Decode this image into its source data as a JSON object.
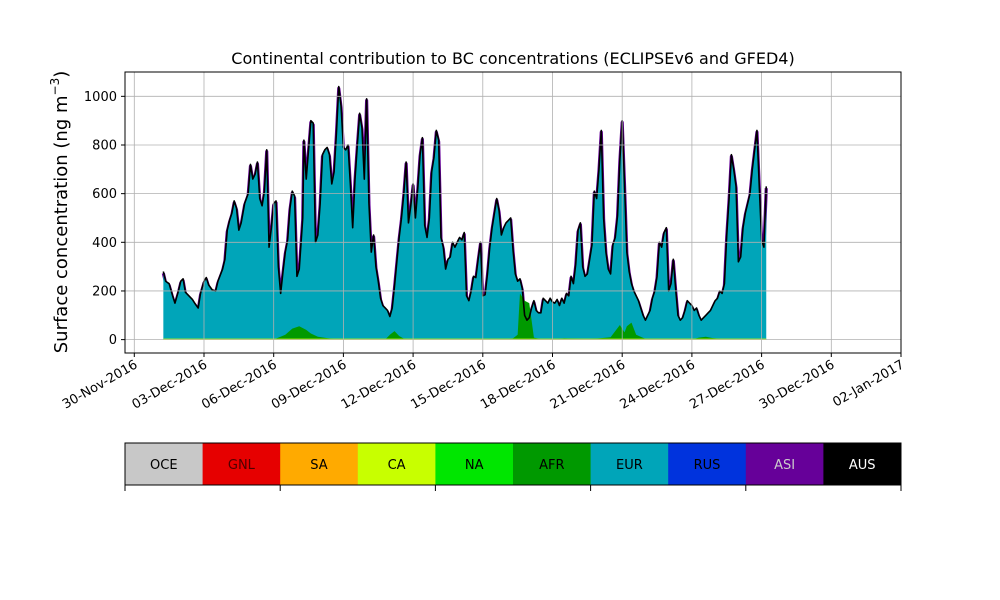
{
  "chart_data": {
    "type": "area",
    "title": "Continental contribution to BC concentrations (ECLIPSEv6 and GFED4)",
    "ylabel_main": "Surface concentration (ng m",
    "ylabel_unit_exp": "−3",
    "ylabel_close": ")",
    "ylim": [
      -55,
      1100
    ],
    "xlim_days": [
      -1.4,
      32.0
    ],
    "grid": true,
    "x_ticks": [
      {
        "label": "30-Nov-2016",
        "day": -1
      },
      {
        "label": "03-Dec-2016",
        "day": 2
      },
      {
        "label": "06-Dec-2016",
        "day": 5
      },
      {
        "label": "09-Dec-2016",
        "day": 8
      },
      {
        "label": "12-Dec-2016",
        "day": 11
      },
      {
        "label": "15-Dec-2016",
        "day": 14
      },
      {
        "label": "18-Dec-2016",
        "day": 17
      },
      {
        "label": "21-Dec-2016",
        "day": 20
      },
      {
        "label": "24-Dec-2016",
        "day": 23
      },
      {
        "label": "27-Dec-2016",
        "day": 26
      },
      {
        "label": "30-Dec-2016",
        "day": 29
      },
      {
        "label": "02-Jan-2017",
        "day": 32
      }
    ],
    "y_ticks": [
      0,
      200,
      400,
      600,
      800,
      1000
    ],
    "total": [
      [
        0.25,
        280
      ],
      [
        0.35,
        240
      ],
      [
        0.5,
        230
      ],
      [
        0.65,
        180
      ],
      [
        0.75,
        150
      ],
      [
        0.9,
        200
      ],
      [
        1.0,
        240
      ],
      [
        1.1,
        250
      ],
      [
        1.2,
        195
      ],
      [
        1.35,
        180
      ],
      [
        1.5,
        165
      ],
      [
        1.6,
        150
      ],
      [
        1.75,
        130
      ],
      [
        1.85,
        190
      ],
      [
        2.0,
        240
      ],
      [
        2.1,
        255
      ],
      [
        2.2,
        225
      ],
      [
        2.35,
        205
      ],
      [
        2.5,
        200
      ],
      [
        2.6,
        240
      ],
      [
        2.8,
        290
      ],
      [
        2.9,
        330
      ],
      [
        3.0,
        450
      ],
      [
        3.1,
        490
      ],
      [
        3.2,
        520
      ],
      [
        3.3,
        570
      ],
      [
        3.4,
        540
      ],
      [
        3.5,
        450
      ],
      [
        3.6,
        480
      ],
      [
        3.75,
        560
      ],
      [
        3.9,
        600
      ],
      [
        4.0,
        720
      ],
      [
        4.1,
        660
      ],
      [
        4.2,
        680
      ],
      [
        4.3,
        730
      ],
      [
        4.4,
        580
      ],
      [
        4.5,
        550
      ],
      [
        4.6,
        610
      ],
      [
        4.7,
        780
      ],
      [
        4.8,
        380
      ],
      [
        4.9,
        460
      ],
      [
        5.0,
        560
      ],
      [
        5.1,
        570
      ],
      [
        5.2,
        300
      ],
      [
        5.3,
        190
      ],
      [
        5.4,
        280
      ],
      [
        5.5,
        360
      ],
      [
        5.6,
        410
      ],
      [
        5.7,
        540
      ],
      [
        5.8,
        610
      ],
      [
        5.9,
        590
      ],
      [
        6.0,
        260
      ],
      [
        6.1,
        290
      ],
      [
        6.25,
        500
      ],
      [
        6.3,
        820
      ],
      [
        6.4,
        660
      ],
      [
        6.5,
        780
      ],
      [
        6.6,
        900
      ],
      [
        6.7,
        890
      ],
      [
        6.8,
        400
      ],
      [
        6.9,
        430
      ],
      [
        7.0,
        560
      ],
      [
        7.1,
        760
      ],
      [
        7.2,
        780
      ],
      [
        7.3,
        790
      ],
      [
        7.4,
        760
      ],
      [
        7.5,
        640
      ],
      [
        7.6,
        690
      ],
      [
        7.7,
        850
      ],
      [
        7.8,
        1040
      ],
      [
        7.9,
        960
      ],
      [
        8.0,
        790
      ],
      [
        8.1,
        780
      ],
      [
        8.2,
        800
      ],
      [
        8.3,
        640
      ],
      [
        8.4,
        460
      ],
      [
        8.5,
        660
      ],
      [
        8.6,
        800
      ],
      [
        8.7,
        930
      ],
      [
        8.8,
        870
      ],
      [
        8.9,
        660
      ],
      [
        9.0,
        990
      ],
      [
        9.1,
        560
      ],
      [
        9.2,
        360
      ],
      [
        9.3,
        430
      ],
      [
        9.4,
        300
      ],
      [
        9.5,
        240
      ],
      [
        9.6,
        170
      ],
      [
        9.7,
        140
      ],
      [
        9.8,
        130
      ],
      [
        9.9,
        120
      ],
      [
        10.0,
        95
      ],
      [
        10.1,
        130
      ],
      [
        10.2,
        220
      ],
      [
        10.3,
        320
      ],
      [
        10.4,
        420
      ],
      [
        10.5,
        500
      ],
      [
        10.6,
        600
      ],
      [
        10.7,
        730
      ],
      [
        10.8,
        480
      ],
      [
        10.9,
        550
      ],
      [
        11.0,
        640
      ],
      [
        11.1,
        500
      ],
      [
        11.2,
        620
      ],
      [
        11.3,
        760
      ],
      [
        11.4,
        830
      ],
      [
        11.5,
        470
      ],
      [
        11.6,
        420
      ],
      [
        11.7,
        500
      ],
      [
        11.8,
        690
      ],
      [
        11.9,
        750
      ],
      [
        12.0,
        860
      ],
      [
        12.1,
        820
      ],
      [
        12.2,
        420
      ],
      [
        12.3,
        380
      ],
      [
        12.4,
        290
      ],
      [
        12.5,
        330
      ],
      [
        12.6,
        340
      ],
      [
        12.7,
        400
      ],
      [
        12.8,
        380
      ],
      [
        12.9,
        400
      ],
      [
        13.0,
        420
      ],
      [
        13.1,
        410
      ],
      [
        13.2,
        440
      ],
      [
        13.3,
        180
      ],
      [
        13.4,
        160
      ],
      [
        13.5,
        200
      ],
      [
        13.6,
        260
      ],
      [
        13.7,
        255
      ],
      [
        13.8,
        330
      ],
      [
        13.9,
        400
      ],
      [
        14.0,
        180
      ],
      [
        14.1,
        185
      ],
      [
        14.2,
        270
      ],
      [
        14.3,
        380
      ],
      [
        14.4,
        460
      ],
      [
        14.5,
        520
      ],
      [
        14.6,
        580
      ],
      [
        14.7,
        530
      ],
      [
        14.8,
        430
      ],
      [
        14.9,
        460
      ],
      [
        15.0,
        480
      ],
      [
        15.1,
        490
      ],
      [
        15.2,
        500
      ],
      [
        15.3,
        370
      ],
      [
        15.4,
        270
      ],
      [
        15.5,
        240
      ],
      [
        15.6,
        250
      ],
      [
        15.7,
        210
      ],
      [
        15.8,
        100
      ],
      [
        15.9,
        80
      ],
      [
        16.0,
        90
      ],
      [
        16.1,
        130
      ],
      [
        16.2,
        160
      ],
      [
        16.3,
        120
      ],
      [
        16.4,
        110
      ],
      [
        16.5,
        110
      ],
      [
        16.6,
        170
      ],
      [
        16.7,
        160
      ],
      [
        16.8,
        150
      ],
      [
        16.9,
        170
      ],
      [
        17.0,
        155
      ],
      [
        17.1,
        150
      ],
      [
        17.2,
        165
      ],
      [
        17.3,
        140
      ],
      [
        17.4,
        170
      ],
      [
        17.5,
        150
      ],
      [
        17.6,
        190
      ],
      [
        17.7,
        180
      ],
      [
        17.8,
        260
      ],
      [
        17.9,
        230
      ],
      [
        18.0,
        310
      ],
      [
        18.1,
        450
      ],
      [
        18.2,
        480
      ],
      [
        18.3,
        300
      ],
      [
        18.4,
        260
      ],
      [
        18.5,
        270
      ],
      [
        18.6,
        330
      ],
      [
        18.7,
        390
      ],
      [
        18.8,
        610
      ],
      [
        18.9,
        580
      ],
      [
        19.0,
        700
      ],
      [
        19.1,
        860
      ],
      [
        19.2,
        500
      ],
      [
        19.3,
        360
      ],
      [
        19.4,
        290
      ],
      [
        19.5,
        270
      ],
      [
        19.6,
        390
      ],
      [
        19.7,
        420
      ],
      [
        19.8,
        510
      ],
      [
        19.9,
        740
      ],
      [
        20.0,
        900
      ],
      [
        20.1,
        640
      ],
      [
        20.2,
        360
      ],
      [
        20.3,
        280
      ],
      [
        20.4,
        230
      ],
      [
        20.5,
        200
      ],
      [
        20.6,
        180
      ],
      [
        20.7,
        160
      ],
      [
        20.8,
        130
      ],
      [
        20.9,
        100
      ],
      [
        21.0,
        80
      ],
      [
        21.1,
        100
      ],
      [
        21.2,
        120
      ],
      [
        21.3,
        170
      ],
      [
        21.4,
        200
      ],
      [
        21.5,
        260
      ],
      [
        21.6,
        400
      ],
      [
        21.7,
        380
      ],
      [
        21.8,
        440
      ],
      [
        21.9,
        460
      ],
      [
        22.0,
        200
      ],
      [
        22.1,
        230
      ],
      [
        22.2,
        330
      ],
      [
        22.3,
        210
      ],
      [
        22.4,
        100
      ],
      [
        22.5,
        80
      ],
      [
        22.6,
        90
      ],
      [
        22.7,
        120
      ],
      [
        22.8,
        160
      ],
      [
        22.9,
        150
      ],
      [
        23.0,
        140
      ],
      [
        23.1,
        120
      ],
      [
        23.2,
        130
      ],
      [
        23.3,
        100
      ],
      [
        23.4,
        80
      ],
      [
        23.5,
        90
      ],
      [
        23.6,
        100
      ],
      [
        23.7,
        110
      ],
      [
        23.8,
        120
      ],
      [
        23.9,
        140
      ],
      [
        24.0,
        160
      ],
      [
        24.1,
        170
      ],
      [
        24.2,
        200
      ],
      [
        24.3,
        190
      ],
      [
        24.4,
        230
      ],
      [
        24.5,
        430
      ],
      [
        24.6,
        580
      ],
      [
        24.7,
        760
      ],
      [
        24.8,
        700
      ],
      [
        24.9,
        630
      ],
      [
        25.0,
        320
      ],
      [
        25.1,
        340
      ],
      [
        25.2,
        460
      ],
      [
        25.3,
        520
      ],
      [
        25.4,
        560
      ],
      [
        25.5,
        600
      ],
      [
        25.6,
        700
      ],
      [
        25.7,
        780
      ],
      [
        25.8,
        860
      ],
      [
        25.9,
        630
      ],
      [
        26.0,
        410
      ],
      [
        26.1,
        380
      ],
      [
        26.2,
        630
      ]
    ],
    "afr": [
      [
        0.25,
        0
      ],
      [
        5.0,
        0
      ],
      [
        5.2,
        8
      ],
      [
        5.5,
        20
      ],
      [
        5.8,
        45
      ],
      [
        6.1,
        55
      ],
      [
        6.4,
        40
      ],
      [
        6.6,
        25
      ],
      [
        6.9,
        12
      ],
      [
        7.3,
        6
      ],
      [
        7.8,
        0
      ],
      [
        9.8,
        0
      ],
      [
        10.0,
        20
      ],
      [
        10.2,
        35
      ],
      [
        10.4,
        15
      ],
      [
        10.6,
        4
      ],
      [
        11.0,
        0
      ],
      [
        15.0,
        0
      ],
      [
        15.3,
        5
      ],
      [
        15.5,
        20
      ],
      [
        15.6,
        190
      ],
      [
        15.8,
        160
      ],
      [
        16.0,
        150
      ],
      [
        16.2,
        8
      ],
      [
        16.5,
        2
      ],
      [
        17.0,
        0
      ],
      [
        17.5,
        5
      ],
      [
        18.5,
        2
      ],
      [
        19.0,
        5
      ],
      [
        19.5,
        10
      ],
      [
        19.9,
        60
      ],
      [
        20.1,
        30
      ],
      [
        20.2,
        55
      ],
      [
        20.4,
        70
      ],
      [
        20.6,
        20
      ],
      [
        21.0,
        3
      ],
      [
        23.0,
        0
      ],
      [
        23.3,
        8
      ],
      [
        23.6,
        12
      ],
      [
        23.9,
        6
      ],
      [
        24.3,
        2
      ],
      [
        26.2,
        0
      ]
    ],
    "ca": [
      [
        0.25,
        4
      ],
      [
        26.2,
        4
      ]
    ],
    "legend": [
      {
        "label": "OCE",
        "color": "#c8c8c8",
        "text_color": "#000000"
      },
      {
        "label": "GNL",
        "color": "#e60000",
        "text_color": "#4d0000"
      },
      {
        "label": "SA",
        "color": "#ffaa00",
        "text_color": "#000000"
      },
      {
        "label": "CA",
        "color": "#c8ff00",
        "text_color": "#000000"
      },
      {
        "label": "NA",
        "color": "#00e600",
        "text_color": "#000000"
      },
      {
        "label": "AFR",
        "color": "#009900",
        "text_color": "#000000"
      },
      {
        "label": "EUR",
        "color": "#00a5b9",
        "text_color": "#000000"
      },
      {
        "label": "RUS",
        "color": "#0033dd",
        "text_color": "#000000"
      },
      {
        "label": "ASI",
        "color": "#660099",
        "text_color": "#cccccc"
      },
      {
        "label": "AUS",
        "color": "#000000",
        "text_color": "#ffffff"
      }
    ],
    "colors": {
      "eur": "#00a5b9",
      "afr": "#009900",
      "ca": "#c8ff00",
      "asi_edge": "#660099",
      "outline": "#000000"
    }
  }
}
